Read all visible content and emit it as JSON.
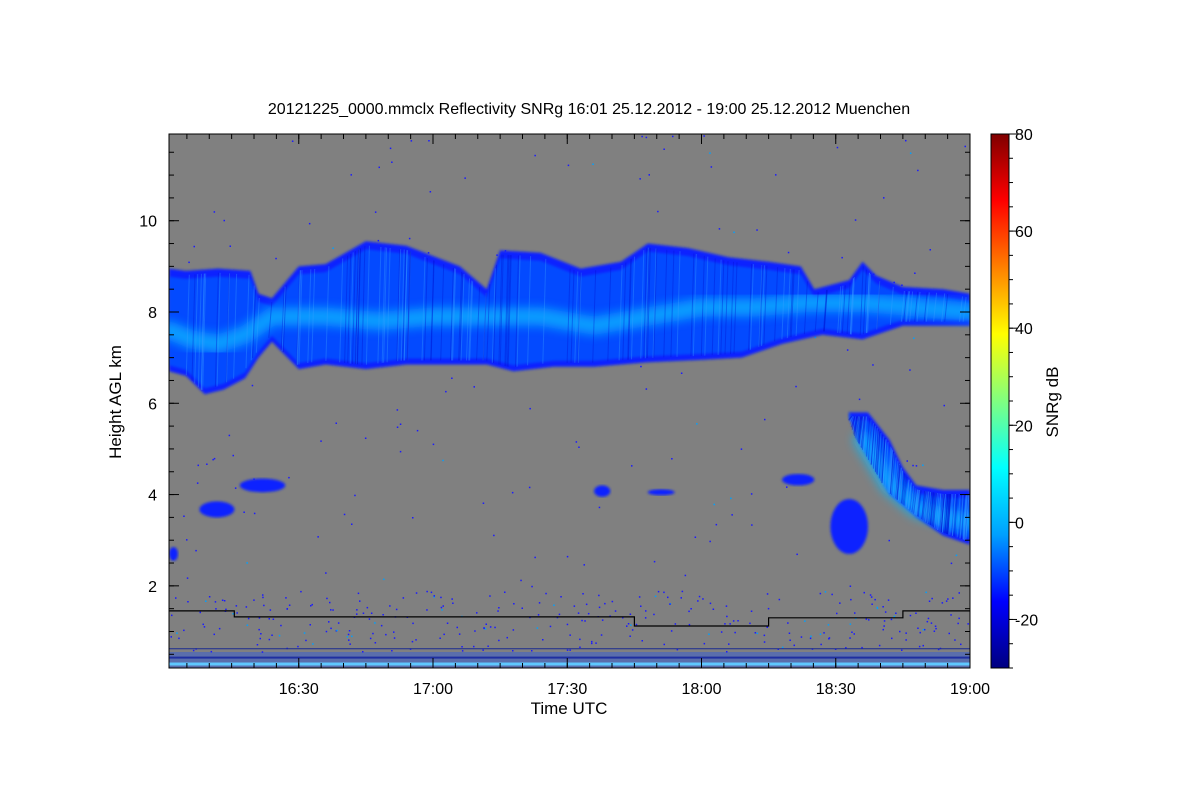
{
  "chart_data": {
    "type": "heatmap",
    "title": "20121225_0000.mmclx Reflectivity SNRg   16:01 25.12.2012 - 19:00 25.12.2012 Muenchen",
    "xlabel": "Time UTC",
    "ylabel": "Height AGL km",
    "colorbar_label": "SNRg dB",
    "x_range_hours": [
      16.0167,
      19.0
    ],
    "y_range_km": [
      0.2,
      11.9
    ],
    "x_ticks": [
      {
        "value": 16.5,
        "label": "16:30"
      },
      {
        "value": 17.0,
        "label": "17:00"
      },
      {
        "value": 17.5,
        "label": "17:30"
      },
      {
        "value": 18.0,
        "label": "18:00"
      },
      {
        "value": 18.5,
        "label": "18:30"
      },
      {
        "value": 19.0,
        "label": "19:00"
      }
    ],
    "y_ticks": [
      {
        "value": 2,
        "label": "2"
      },
      {
        "value": 4,
        "label": "4"
      },
      {
        "value": 6,
        "label": "6"
      },
      {
        "value": 8,
        "label": "8"
      },
      {
        "value": 10,
        "label": "10"
      }
    ],
    "colorbar_range": [
      -30,
      80
    ],
    "colorbar_ticks": [
      {
        "value": -20,
        "label": "-20"
      },
      {
        "value": 0,
        "label": "0"
      },
      {
        "value": 20,
        "label": "20"
      },
      {
        "value": 40,
        "label": "40"
      },
      {
        "value": 60,
        "label": "60"
      },
      {
        "value": 80,
        "label": "80"
      }
    ],
    "colormap": [
      "#000080",
      "#0000ff",
      "#00a0ff",
      "#00ffff",
      "#80ff80",
      "#ffff00",
      "#ff8000",
      "#ff0000",
      "#800000"
    ],
    "background_color": "#808080",
    "cloud_layers": [
      {
        "name": "upper cirrus layer",
        "top": [
          [
            16.0167,
            8.95
          ],
          [
            16.08,
            8.9
          ],
          [
            16.2,
            8.95
          ],
          [
            16.32,
            8.9
          ],
          [
            16.35,
            8.4
          ],
          [
            16.4,
            8.3
          ],
          [
            16.5,
            9.0
          ],
          [
            16.6,
            9.05
          ],
          [
            16.75,
            9.55
          ],
          [
            16.9,
            9.45
          ],
          [
            17.1,
            9.0
          ],
          [
            17.2,
            8.5
          ],
          [
            17.25,
            9.35
          ],
          [
            17.4,
            9.3
          ],
          [
            17.55,
            8.95
          ],
          [
            17.7,
            9.1
          ],
          [
            17.8,
            9.5
          ],
          [
            17.95,
            9.4
          ],
          [
            18.1,
            9.2
          ],
          [
            18.25,
            9.1
          ],
          [
            18.37,
            9.0
          ],
          [
            18.42,
            8.5
          ],
          [
            18.55,
            8.7
          ],
          [
            18.6,
            9.1
          ],
          [
            18.65,
            8.8
          ],
          [
            18.75,
            8.55
          ],
          [
            18.9,
            8.5
          ],
          [
            19.0,
            8.4
          ]
        ],
        "bottom": [
          [
            16.0167,
            6.7
          ],
          [
            16.08,
            6.6
          ],
          [
            16.15,
            6.2
          ],
          [
            16.22,
            6.3
          ],
          [
            16.3,
            6.55
          ],
          [
            16.35,
            7.0
          ],
          [
            16.4,
            7.35
          ],
          [
            16.45,
            7.05
          ],
          [
            16.5,
            6.75
          ],
          [
            16.6,
            6.85
          ],
          [
            16.75,
            6.75
          ],
          [
            16.9,
            6.85
          ],
          [
            17.1,
            6.85
          ],
          [
            17.2,
            6.85
          ],
          [
            17.3,
            6.7
          ],
          [
            17.45,
            6.8
          ],
          [
            17.6,
            6.8
          ],
          [
            17.8,
            6.9
          ],
          [
            18.0,
            6.95
          ],
          [
            18.15,
            7.0
          ],
          [
            18.3,
            7.3
          ],
          [
            18.45,
            7.5
          ],
          [
            18.6,
            7.4
          ],
          [
            18.75,
            7.7
          ],
          [
            18.9,
            7.7
          ],
          [
            19.0,
            7.7
          ]
        ],
        "core": [
          [
            16.0167,
            7.6
          ],
          [
            16.1,
            7.4
          ],
          [
            16.2,
            7.3
          ],
          [
            16.3,
            7.5
          ],
          [
            16.4,
            7.9
          ],
          [
            16.6,
            7.9
          ],
          [
            16.8,
            7.8
          ],
          [
            17.0,
            7.9
          ],
          [
            17.2,
            7.9
          ],
          [
            17.4,
            7.9
          ],
          [
            17.6,
            7.7
          ],
          [
            17.8,
            7.9
          ],
          [
            18.0,
            8.1
          ],
          [
            18.2,
            8.1
          ],
          [
            18.4,
            8.2
          ],
          [
            18.6,
            8.2
          ],
          [
            18.8,
            8.1
          ],
          [
            19.0,
            8.0
          ]
        ]
      },
      {
        "name": "lower slanted cloud",
        "top": [
          [
            18.55,
            5.8
          ],
          [
            18.62,
            5.8
          ],
          [
            18.7,
            5.2
          ],
          [
            18.75,
            4.6
          ],
          [
            18.8,
            4.2
          ],
          [
            18.9,
            4.1
          ],
          [
            19.0,
            4.1
          ]
        ],
        "bottom": [
          [
            18.55,
            5.7
          ],
          [
            18.58,
            5.2
          ],
          [
            18.65,
            4.5
          ],
          [
            18.7,
            4.0
          ],
          [
            18.8,
            3.5
          ],
          [
            18.9,
            3.1
          ],
          [
            19.0,
            2.9
          ]
        ],
        "core": [
          [
            18.6,
            5.2
          ],
          [
            18.7,
            4.2
          ],
          [
            18.8,
            3.7
          ],
          [
            18.9,
            3.5
          ],
          [
            19.0,
            3.4
          ]
        ]
      }
    ],
    "echo_patches": [
      {
        "x": [
          16.13,
          16.26
        ],
        "y": [
          3.5,
          3.85
        ]
      },
      {
        "x": [
          16.28,
          16.45
        ],
        "y": [
          4.05,
          4.35
        ]
      },
      {
        "x": [
          17.6,
          17.66
        ],
        "y": [
          3.95,
          4.2
        ]
      },
      {
        "x": [
          17.8,
          17.9
        ],
        "y": [
          4.0,
          4.1
        ]
      },
      {
        "x": [
          18.3,
          18.42
        ],
        "y": [
          4.2,
          4.45
        ]
      },
      {
        "x": [
          18.48,
          18.62
        ],
        "y": [
          2.7,
          3.9
        ]
      },
      {
        "x": [
          16.0167,
          16.05
        ],
        "y": [
          2.55,
          2.85
        ]
      }
    ],
    "ground_clutter_km": [
      0.2,
      0.55
    ],
    "boundary_line": {
      "color": "#000000",
      "points": [
        [
          16.0167,
          1.45
        ],
        [
          16.26,
          1.45
        ],
        [
          16.26,
          1.32
        ],
        [
          17.75,
          1.32
        ],
        [
          17.75,
          1.12
        ],
        [
          18.25,
          1.12
        ],
        [
          18.25,
          1.3
        ],
        [
          18.75,
          1.3
        ],
        [
          18.75,
          1.45
        ],
        [
          19.0,
          1.45
        ]
      ]
    },
    "reference_line_km": 0.62,
    "grid": false,
    "colorbar_position": "right"
  }
}
